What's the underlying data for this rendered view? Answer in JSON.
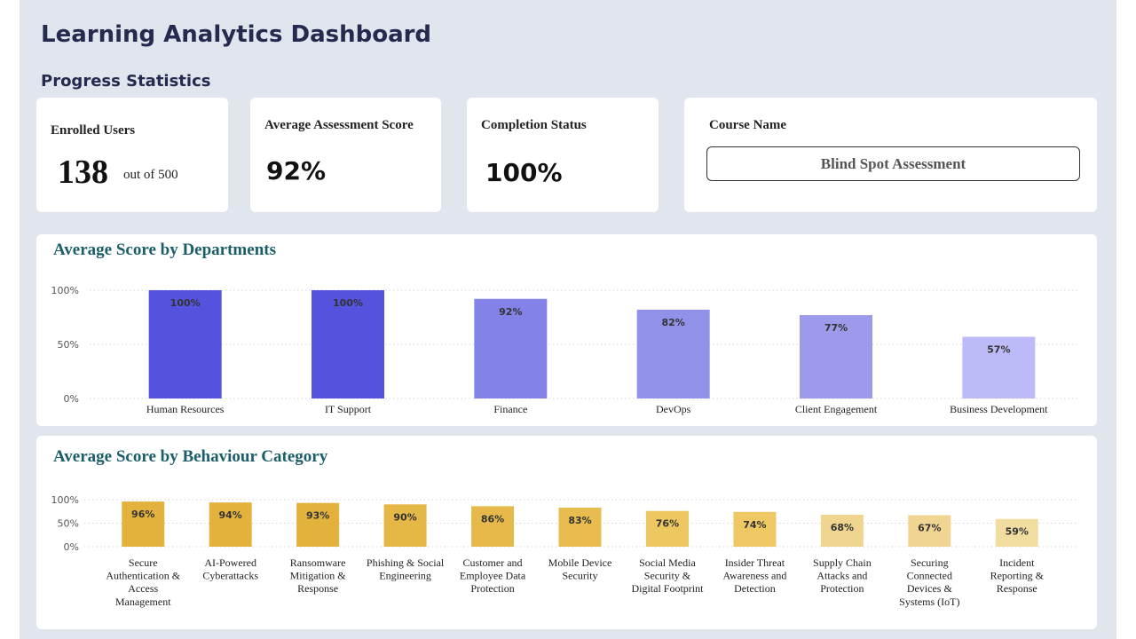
{
  "dashboard": {
    "title": "Learning Analytics Dashboard",
    "section_title": "Progress Statistics"
  },
  "kpis": {
    "enrolled_label": "Enrolled Users",
    "enrolled_value": "138",
    "enrolled_suffix": "out of 500",
    "avg_score_label": "Average Assessment Score",
    "avg_score_value": "92%",
    "completion_label": "Completion Status",
    "completion_value": "100%",
    "course_label": "Course Name",
    "course_value": "Blind Spot Assessment"
  },
  "chart_data": [
    {
      "type": "bar",
      "title": "Average Score by Departments",
      "categories": [
        "Human Resources",
        "IT Support",
        "Finance",
        "DevOps",
        "Client Engagement",
        "Business Development"
      ],
      "values": [
        100,
        100,
        92,
        82,
        77,
        57
      ],
      "data_labels": [
        "100%",
        "100%",
        "92%",
        "82%",
        "77%",
        "57%"
      ],
      "colors": [
        "#5553dd",
        "#5553dd",
        "#8282e8",
        "#9291e9",
        "#9c9aea",
        "#bdbbf7"
      ],
      "yticks": [
        "0%",
        "50%",
        "100%"
      ],
      "ylim": [
        0,
        100
      ],
      "grid": true
    },
    {
      "type": "bar",
      "title": "Average Score by Behaviour Category",
      "categories": [
        [
          "Secure",
          "Authentication &",
          "Access",
          "Management"
        ],
        [
          "AI-Powered",
          "Cyberattacks"
        ],
        [
          "Ransomware",
          "Mitigation &",
          "Response"
        ],
        [
          "Phishing & Social",
          "Engineering"
        ],
        [
          "Customer and",
          "Employee Data",
          "Protection"
        ],
        [
          "Mobile Device",
          "Security"
        ],
        [
          "Social Media",
          "Security &",
          "Digital Footprint"
        ],
        [
          "Insider Threat",
          "Awareness and",
          "Detection"
        ],
        [
          "Supply Chain",
          "Attacks and",
          "Protection"
        ],
        [
          "Securing",
          "Connected",
          "Devices &",
          "Systems (IoT)"
        ],
        [
          "Incident",
          "Reporting &",
          "Response"
        ]
      ],
      "values": [
        96,
        94,
        93,
        90,
        86,
        83,
        76,
        74,
        68,
        67,
        59
      ],
      "data_labels": [
        "96%",
        "94%",
        "93%",
        "90%",
        "86%",
        "83%",
        "76%",
        "74%",
        "68%",
        "67%",
        "59%"
      ],
      "colors": [
        "#e2b23d",
        "#e2b23d",
        "#e2b23d",
        "#e5b747",
        "#e6b94a",
        "#e8bc4e",
        "#edc75f",
        "#eec862",
        "#f0d590",
        "#f0d592",
        "#f2dda0"
      ],
      "yticks": [
        "0%",
        "50%",
        "100%"
      ],
      "ylim": [
        0,
        100
      ],
      "grid": true
    }
  ]
}
